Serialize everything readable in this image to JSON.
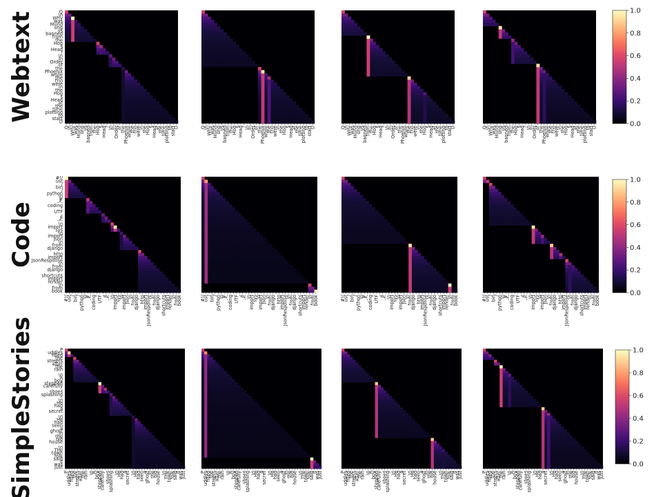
{
  "colors": {
    "colormap": "magma",
    "zero": "#000004",
    "max": "#fcfdbf"
  },
  "chart_data": {
    "type": "heatmap",
    "colorbar": {
      "ticks": [
        "0.0",
        "0.2",
        "0.4",
        "0.6",
        "0.8",
        "1.0"
      ],
      "range": [
        0,
        1
      ]
    },
    "rows": [
      {
        "label": "Webtext",
        "tokens": [
          "Q",
          "\\n",
          "Why",
          "was",
          "Mund",
          "ung",
          "us",
          "banned",
          "from",
          "the",
          "Hog",
          "s",
          "Head",
          "?",
          "\\n",
          "In",
          "Order",
          "of",
          "the",
          "Phoenix",
          "while",
          "the",
          "trio",
          "were",
          "in",
          "the",
          "Hog",
          "s",
          "Head",
          "at",
          "the",
          "time",
          "plotting",
          "to",
          "start",
          "D"
        ],
        "panels": [
          {
            "segments": [
              [
                0,
                10
              ],
              [
                10,
                14
              ],
              [
                14,
                18
              ],
              [
                18,
                36
              ]
            ],
            "marks": [
              [
                2,
                1.0
              ],
              [
                11,
                0.42
              ],
              [
                14,
                0.28
              ],
              [
                18,
                0.15
              ]
            ]
          },
          {
            "segments": [
              [
                0,
                18
              ],
              [
                18,
                36
              ]
            ],
            "marks": [
              [
                19,
                0.95
              ],
              [
                21,
                0.45
              ]
            ]
          },
          {
            "segments": [
              [
                0,
                8
              ],
              [
                8,
                21
              ],
              [
                21,
                36
              ]
            ],
            "marks": [
              [
                8,
                1.0
              ],
              [
                21,
                0.9
              ],
              [
                26,
                0.25
              ]
            ]
          },
          {
            "segments": [
              [
                0,
                5
              ],
              [
                5,
                9
              ],
              [
                9,
                17
              ],
              [
                17,
                36
              ]
            ],
            "marks": [
              [
                5,
                0.95
              ],
              [
                9,
                0.4
              ],
              [
                17,
                0.95
              ],
              [
                19,
                0.3
              ]
            ]
          }
        ]
      },
      {
        "label": "Code",
        "tokens": [
          "#!/",
          "usr",
          "/",
          "bin",
          "/",
          "python",
          "\\n",
          "#",
          "-*-",
          "coding",
          ":",
          "UTF",
          "-",
          "8",
          "-*-",
          "\\n",
          "import",
          "sys",
          "\\n",
          "import",
          "json",
          "\\n",
          "from",
          "django",
          ".",
          "http",
          "import",
          "JsonResponse",
          "\\n",
          "from",
          "django",
          ".",
          "shortcuts",
          "import",
          "render",
          "\\n",
          "from",
          "book"
        ],
        "panels": [
          {
            "segments": [
              [
                0,
                7
              ],
              [
                7,
                12
              ],
              [
                12,
                15
              ],
              [
                15,
                18
              ],
              [
                18,
                24
              ],
              [
                24,
                38
              ]
            ],
            "marks": [
              [
                0,
                1.0
              ],
              [
                7,
                0.5
              ],
              [
                12,
                0.3
              ],
              [
                16,
                0.95
              ],
              [
                18,
                0.22
              ],
              [
                23,
                0.15
              ]
            ]
          },
          {
            "segments": [
              [
                0,
                35
              ],
              [
                35,
                38
              ]
            ],
            "marks": [
              [
                1,
                0.8
              ],
              [
                37,
                1.0
              ]
            ]
          },
          {
            "segments": [
              [
                0,
                22
              ],
              [
                22,
                38
              ]
            ],
            "marks": [
              [
                22,
                0.95
              ],
              [
                35,
                1.0
              ]
            ]
          },
          {
            "segments": [
              [
                0,
                2
              ],
              [
                2,
                16
              ],
              [
                16,
                22
              ],
              [
                22,
                27
              ],
              [
                27,
                38
              ]
            ],
            "marks": [
              [
                1,
                0.5
              ],
              [
                16,
                0.95
              ],
              [
                19,
                0.4
              ],
              [
                22,
                0.9
              ],
              [
                25,
                0.45
              ],
              [
                28,
                0.3
              ]
            ]
          }
        ]
      },
      {
        "label": "SimpleStories",
        "tokens": [
          "P",
          "uddles",
          "filled",
          "the",
          "streets",
          "after",
          "the",
          "rain",
          ".",
          "\\n",
          "A",
          "boy",
          "stepped",
          "carefully",
          ",",
          "shoes",
          "splashing",
          ".",
          "\\n",
          "He",
          "had",
          "a",
          "secret",
          ".",
          "\\n",
          "He",
          "had",
          "seen",
          "a",
          "ghost",
          "in",
          "the",
          "old",
          "house",
          ".",
          "\\n",
          "The",
          "town",
          "folk",
          "said",
          "it",
          "was",
          "just"
        ],
        "panels": [
          {
            "segments": [
              [
                0,
                3
              ],
              [
                3,
                12
              ],
              [
                12,
                16
              ],
              [
                16,
                24
              ],
              [
                24,
                43
              ]
            ],
            "marks": [
              [
                1,
                0.9
              ],
              [
                12,
                1.0
              ],
              [
                14,
                0.45
              ],
              [
                16,
                0.25
              ],
              [
                24,
                0.15
              ]
            ]
          },
          {
            "segments": [
              [
                0,
                39
              ],
              [
                39,
                43
              ]
            ],
            "marks": [
              [
                1,
                0.75
              ],
              [
                39,
                1.0
              ]
            ]
          },
          {
            "segments": [
              [
                0,
                12
              ],
              [
                12,
                32
              ],
              [
                32,
                43
              ]
            ],
            "marks": [
              [
                12,
                0.9
              ],
              [
                32,
                0.9
              ],
              [
                36,
                0.2
              ]
            ]
          },
          {
            "segments": [
              [
                0,
                4
              ],
              [
                4,
                6
              ],
              [
                6,
                21
              ],
              [
                21,
                43
              ]
            ],
            "marks": [
              [
                2,
                0.35
              ],
              [
                6,
                1.0
              ],
              [
                9,
                0.3
              ],
              [
                21,
                0.9
              ],
              [
                23,
                0.4
              ]
            ]
          }
        ]
      }
    ]
  }
}
